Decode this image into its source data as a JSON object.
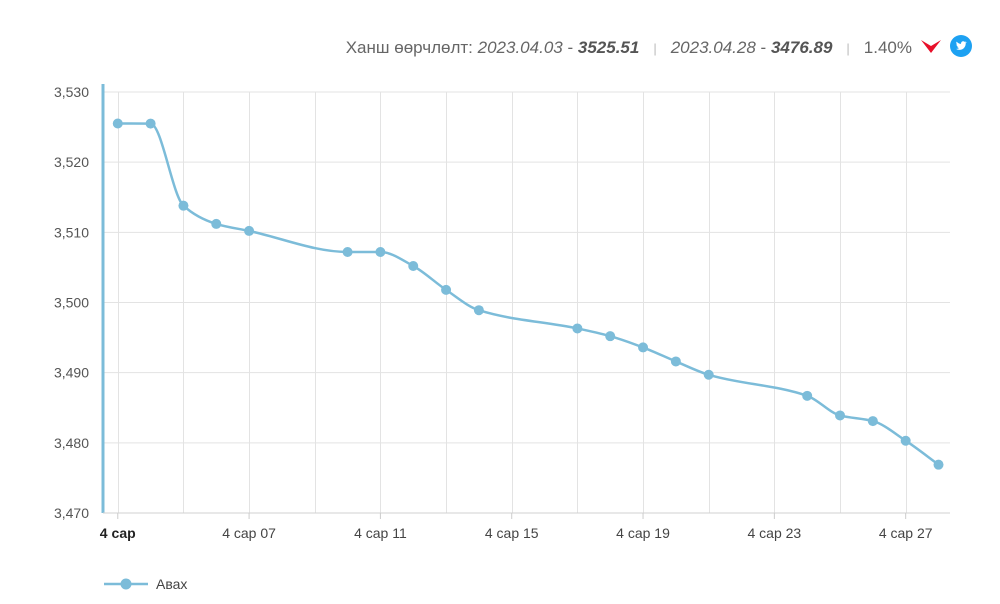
{
  "header": {
    "label": "Ханш өөрчлөлт:",
    "start_date": "2023.04.03",
    "start_value": "3525.51",
    "end_date": "2023.04.28",
    "end_value": "3476.89",
    "dash": "-",
    "sep": "|",
    "change": "1.40%",
    "direction_icon": "down-arrow-icon",
    "share_icon": "twitter-icon"
  },
  "colors": {
    "series": "#7cbcd9",
    "axis": "#7cbcd9",
    "grid": "#e3e3e3",
    "down": "#e8102a",
    "twitter": "#1da1f2"
  },
  "chart_data": {
    "type": "line",
    "title": "",
    "xlabel": "",
    "ylabel": "",
    "ylim": [
      3470,
      3530
    ],
    "y_ticks": [
      "3,530",
      "3,520",
      "3,510",
      "3,500",
      "3,490",
      "3,480",
      "3,470"
    ],
    "x_ticks": [
      {
        "label": "4 сар",
        "day": 3
      },
      {
        "label": "4 сар 07",
        "day": 7
      },
      {
        "label": "4 сар 11",
        "day": 11
      },
      {
        "label": "4 сар 15",
        "day": 15
      },
      {
        "label": "4 сар 19",
        "day": 19
      },
      {
        "label": "4 сар 23",
        "day": 23
      },
      {
        "label": "4 сар 27",
        "day": 27
      }
    ],
    "grid": true,
    "legend_position": "bottom-left",
    "series": [
      {
        "name": "Авах",
        "x": [
          3,
          4,
          5,
          6,
          7,
          10,
          11,
          12,
          13,
          14,
          17,
          18,
          19,
          20,
          21,
          24,
          25,
          26,
          27,
          28
        ],
        "values": [
          3525.51,
          3525.5,
          3513.8,
          3511.2,
          3510.2,
          3507.2,
          3507.2,
          3505.2,
          3501.8,
          3498.9,
          3496.3,
          3495.2,
          3493.6,
          3491.6,
          3489.7,
          3486.7,
          3483.9,
          3483.1,
          3480.3,
          3476.89
        ]
      }
    ]
  }
}
